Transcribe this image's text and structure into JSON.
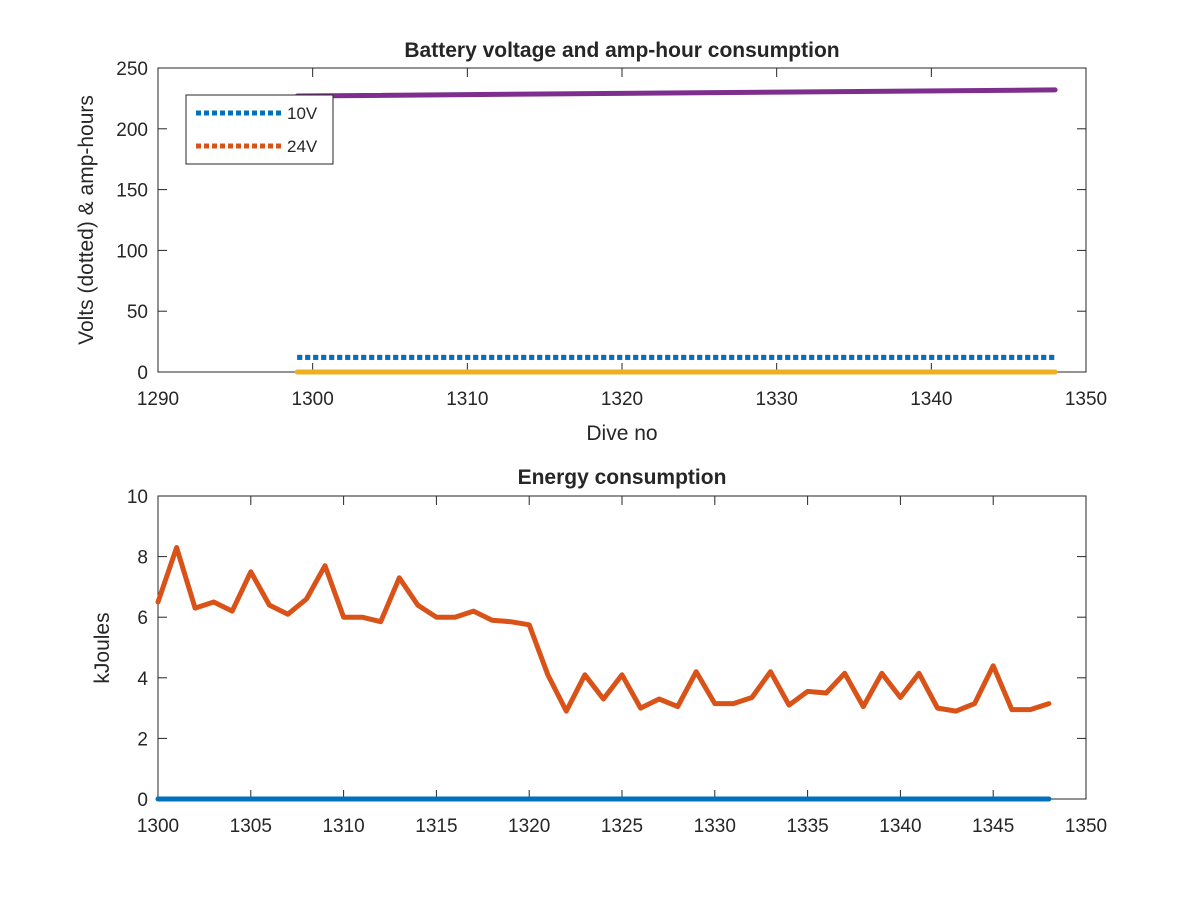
{
  "chart_data": [
    {
      "type": "line",
      "title": "Battery voltage and amp-hour consumption",
      "xlabel": "Dive no",
      "ylabel": "Volts (dotted) & amp-hours",
      "xlim": [
        1290,
        1350
      ],
      "ylim": [
        0,
        250
      ],
      "xticks": [
        1290,
        1300,
        1310,
        1320,
        1330,
        1340,
        1350
      ],
      "yticks": [
        0,
        50,
        100,
        150,
        200,
        250
      ],
      "grid": false,
      "legend": {
        "placement": "top-left",
        "entries": [
          "10V",
          "24V"
        ]
      },
      "series": [
        {
          "name": "10V",
          "style": "dotted",
          "color": "#0072BD",
          "x": [
            1299,
            1348
          ],
          "y": [
            12,
            12
          ]
        },
        {
          "name": "24V",
          "style": "dotted",
          "color": "#D95319",
          "x": [
            1299,
            1348
          ],
          "y": [
            12,
            12
          ]
        },
        {
          "style": "solid",
          "color": "#EDB120",
          "x": [
            1299,
            1348
          ],
          "y": [
            0,
            0
          ]
        },
        {
          "style": "solid",
          "color": "#7E2F8E",
          "x": [
            1299,
            1348
          ],
          "y": [
            227,
            232
          ]
        }
      ]
    },
    {
      "type": "line",
      "title": "Energy consumption",
      "xlabel": "",
      "ylabel": "kJoules",
      "xlim": [
        1300,
        1350
      ],
      "ylim": [
        0,
        10
      ],
      "xticks": [
        1300,
        1305,
        1310,
        1315,
        1320,
        1325,
        1330,
        1335,
        1340,
        1345,
        1350
      ],
      "yticks": [
        0,
        2,
        4,
        6,
        8,
        10
      ],
      "grid": false,
      "series": [
        {
          "style": "solid",
          "color": "#0072BD",
          "x": [
            1300,
            1348
          ],
          "y": [
            0,
            0
          ]
        },
        {
          "style": "solid",
          "color": "#D95319",
          "x": [
            1300,
            1301,
            1302,
            1303,
            1304,
            1305,
            1306,
            1307,
            1308,
            1309,
            1310,
            1311,
            1312,
            1313,
            1314,
            1315,
            1316,
            1317,
            1318,
            1319,
            1320,
            1321,
            1322,
            1323,
            1324,
            1325,
            1326,
            1327,
            1328,
            1329,
            1330,
            1331,
            1332,
            1333,
            1334,
            1335,
            1336,
            1337,
            1338,
            1339,
            1340,
            1341,
            1342,
            1343,
            1344,
            1345,
            1346,
            1347,
            1348
          ],
          "y": [
            6.5,
            8.3,
            6.3,
            6.5,
            6.2,
            7.5,
            6.4,
            6.1,
            6.6,
            7.7,
            6.0,
            6.0,
            5.85,
            7.3,
            6.4,
            6.0,
            6.0,
            6.2,
            5.9,
            5.85,
            5.75,
            4.1,
            2.9,
            4.1,
            3.3,
            4.1,
            3.0,
            3.3,
            3.05,
            4.2,
            3.15,
            3.15,
            3.35,
            4.2,
            3.1,
            3.55,
            3.5,
            4.15,
            3.05,
            4.15,
            3.35,
            4.15,
            3.0,
            2.9,
            3.15,
            4.4,
            2.95,
            2.95,
            3.15
          ]
        }
      ]
    }
  ]
}
